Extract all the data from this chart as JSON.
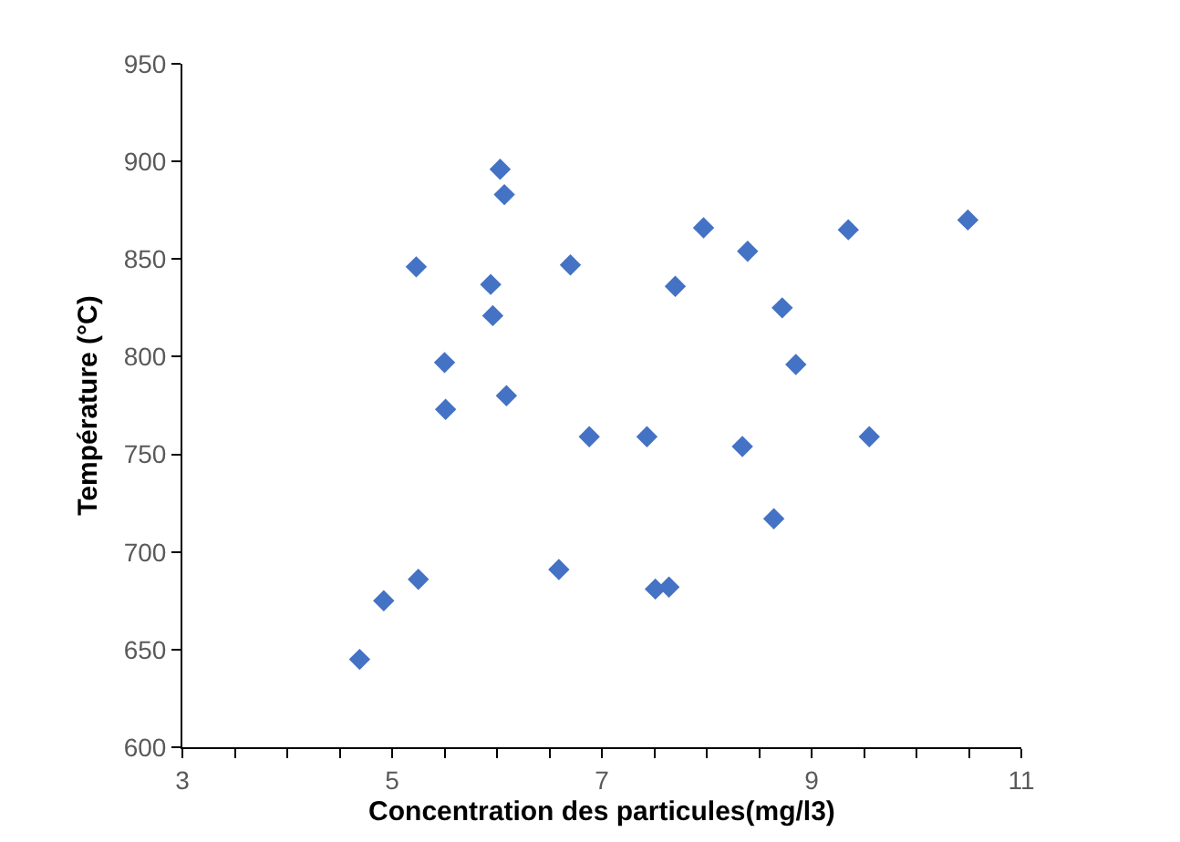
{
  "chart_data": {
    "type": "scatter",
    "xlabel": "Concentration des particules(mg/l3)",
    "ylabel": "Température (°C)",
    "x": [
      4.69,
      4.92,
      5.25,
      5.23,
      5.5,
      5.51,
      5.94,
      5.96,
      6.03,
      6.07,
      6.09,
      6.7,
      6.88,
      6.59,
      7.43,
      7.51,
      7.64,
      7.7,
      7.97,
      8.39,
      8.34,
      8.64,
      8.72,
      8.85,
      9.35,
      9.55,
      10.49
    ],
    "series": [
      {
        "color": "#4472c4",
        "values": [
          645,
          675,
          686,
          846,
          797,
          773,
          837,
          821,
          896,
          883,
          780,
          847,
          759,
          691,
          759,
          681,
          682,
          836,
          866,
          854,
          754,
          717,
          825,
          796,
          865,
          759,
          870
        ]
      }
    ],
    "xlim": [
      3,
      11
    ],
    "xticks": [
      3,
      {
        "value": 3.5,
        "label": null
      },
      {
        "value": 4,
        "label": null
      },
      {
        "value": 4.5,
        "label": null
      },
      5,
      {
        "value": 5.5,
        "label": null
      },
      {
        "value": 6,
        "label": null
      },
      {
        "value": 6.5,
        "label": null
      },
      7,
      {
        "value": 7.5,
        "label": null
      },
      {
        "value": 8,
        "label": null
      },
      {
        "value": 8.5,
        "label": null
      },
      9,
      {
        "value": 9.5,
        "label": null
      },
      {
        "value": 10,
        "label": null
      },
      {
        "value": 10.5,
        "label": null
      },
      11
    ],
    "ylim": [
      600,
      950
    ],
    "yticks": [
      600,
      650,
      700,
      750,
      800,
      850,
      900,
      950
    ],
    "marker": "diamond"
  }
}
